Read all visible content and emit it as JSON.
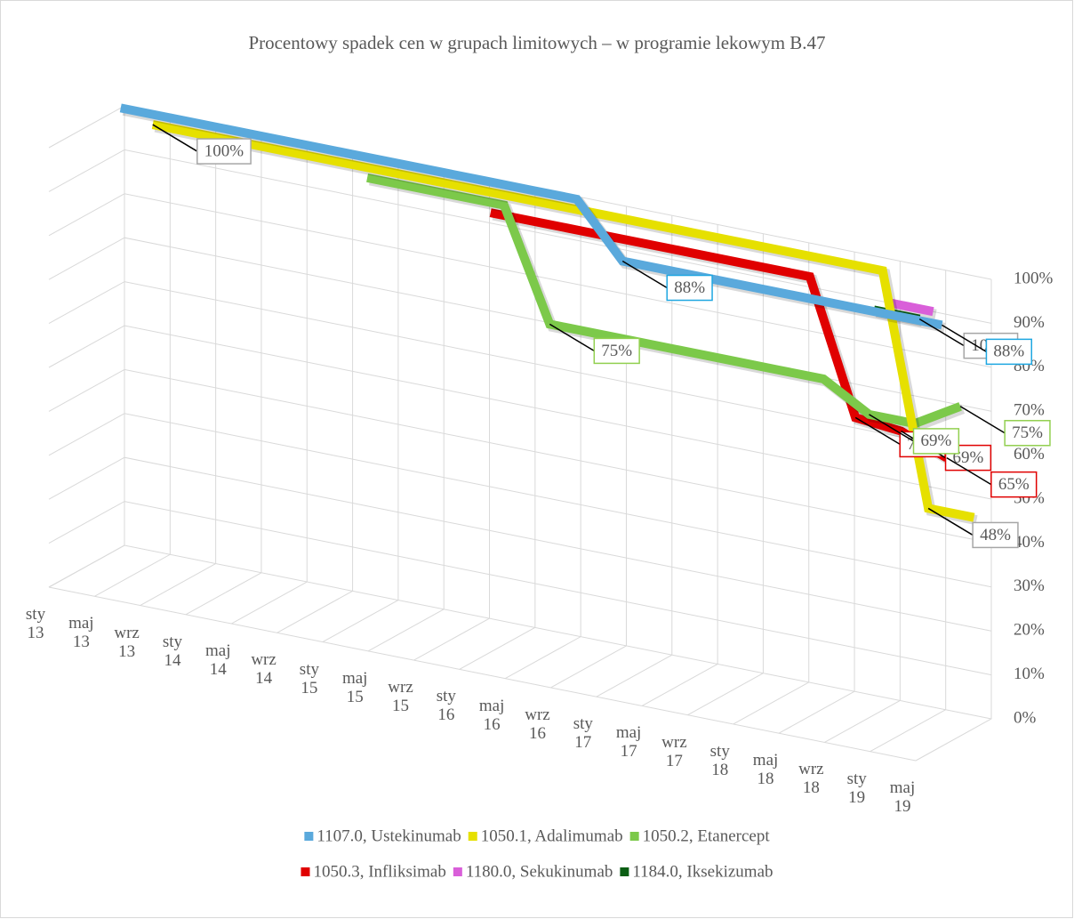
{
  "chart_data": {
    "type": "line3d",
    "title": "Procentowy spadek cen w grupach limitowych – w programie lekowym B.47",
    "categories": [
      "sty 13",
      "maj 13",
      "wrz 13",
      "sty 14",
      "maj 14",
      "wrz 14",
      "sty 15",
      "maj 15",
      "wrz 15",
      "sty 16",
      "maj 16",
      "wrz 16",
      "sty 17",
      "maj 17",
      "wrz 17",
      "sty 18",
      "maj 18",
      "wrz 18",
      "sty 19",
      "maj 19"
    ],
    "ylim": [
      0,
      100
    ],
    "yticks": [
      {
        "value": 0,
        "label": "0%"
      },
      {
        "value": 10,
        "label": "10%"
      },
      {
        "value": 20,
        "label": "20%"
      },
      {
        "value": 30,
        "label": "30%"
      },
      {
        "value": 40,
        "label": "40%"
      },
      {
        "value": 50,
        "label": "50%"
      },
      {
        "value": 60,
        "label": "60%"
      },
      {
        "value": 70,
        "label": "70%"
      },
      {
        "value": 80,
        "label": "80%"
      },
      {
        "value": 90,
        "label": "90%"
      },
      {
        "value": 100,
        "label": "100%"
      }
    ],
    "grid": true,
    "legend": "bottom",
    "series": [
      {
        "name": "1107.0, Ustekinumab",
        "color": "#5aa9dc",
        "label_border": "#1fa7e1",
        "values": [
          100,
          100,
          100,
          100,
          100,
          100,
          100,
          100,
          100,
          100,
          100,
          88,
          88,
          88,
          88,
          88,
          88,
          88,
          88,
          null
        ],
        "value_labels": [
          null,
          null,
          null,
          null,
          null,
          null,
          null,
          null,
          null,
          null,
          null,
          "88%",
          null,
          null,
          null,
          null,
          null,
          null,
          "88%",
          null
        ]
      },
      {
        "name": "1050.1, Adalimumab",
        "color": "#e6e000",
        "label_border": "#a6a6a6",
        "values": [
          null,
          100,
          100,
          100,
          100,
          100,
          100,
          100,
          100,
          100,
          100,
          100,
          100,
          100,
          100,
          100,
          100,
          100,
          48,
          48
        ],
        "value_labels": [
          null,
          "100%",
          null,
          null,
          null,
          null,
          null,
          null,
          null,
          null,
          null,
          null,
          null,
          null,
          null,
          null,
          null,
          null,
          "48%",
          null
        ]
      },
      {
        "name": "1050.2, Etanercept",
        "color": "#7cc94a",
        "label_border": "#92d050",
        "values": [
          null,
          null,
          null,
          null,
          null,
          null,
          100,
          100,
          100,
          100,
          75,
          75,
          75,
          75,
          75,
          75,
          75,
          69,
          69,
          75
        ],
        "value_labels": [
          null,
          null,
          null,
          null,
          null,
          null,
          null,
          null,
          null,
          null,
          "75%",
          null,
          null,
          null,
          null,
          null,
          null,
          "69%",
          null,
          "75%"
        ]
      },
      {
        "name": "1050.3, Infliksimab",
        "color": "#e00000",
        "label_border": "#e00000",
        "values": [
          null,
          null,
          null,
          null,
          null,
          null,
          null,
          null,
          null,
          100,
          100,
          100,
          100,
          100,
          100,
          100,
          100,
          70,
          69,
          65
        ],
        "value_labels": [
          null,
          null,
          null,
          null,
          null,
          null,
          null,
          null,
          null,
          null,
          null,
          null,
          null,
          null,
          null,
          null,
          null,
          "70%",
          "69%",
          "65%"
        ]
      },
      {
        "name": "1180.0, Sekukinumab",
        "color": "#d95fd9",
        "label_border": "#a6a6a6",
        "values": [
          null,
          null,
          null,
          null,
          null,
          null,
          null,
          null,
          null,
          null,
          null,
          null,
          null,
          null,
          null,
          null,
          null,
          null,
          100,
          100
        ],
        "value_labels": [
          null,
          null,
          null,
          null,
          null,
          null,
          null,
          null,
          null,
          null,
          null,
          null,
          null,
          null,
          null,
          null,
          null,
          null,
          null,
          null
        ]
      },
      {
        "name": "1184.0, Iksekizumab",
        "color": "#0b5e14",
        "label_border": "#a6a6a6",
        "values": [
          null,
          null,
          null,
          null,
          null,
          null,
          null,
          null,
          null,
          null,
          null,
          null,
          null,
          null,
          null,
          null,
          null,
          null,
          100,
          100
        ],
        "value_labels": [
          null,
          null,
          null,
          null,
          null,
          null,
          null,
          null,
          null,
          null,
          null,
          null,
          null,
          null,
          null,
          null,
          null,
          null,
          null,
          "100%"
        ]
      }
    ]
  }
}
